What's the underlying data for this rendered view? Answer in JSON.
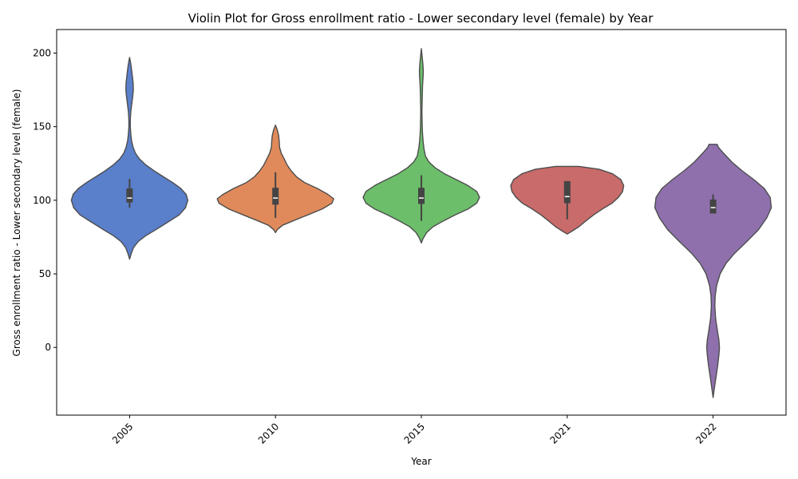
{
  "chart_data": {
    "type": "violin",
    "title": "Violin Plot for Gross enrollment ratio - Lower secondary level (female) by Year",
    "xlabel": "Year",
    "ylabel": "Gross enrollment ratio - Lower secondary level (female)",
    "categories": [
      "2005",
      "2010",
      "2015",
      "2021",
      "2022"
    ],
    "y_ticks": [
      0,
      50,
      100,
      150,
      200
    ],
    "ylim": [
      -46,
      216
    ],
    "grid": false,
    "colors": [
      "#5a7fcb",
      "#e08a5b",
      "#6cbe6a",
      "#c86b6a",
      "#8f70ad"
    ],
    "violins": [
      {
        "category": "2005",
        "profile": [
          [
            60,
            0
          ],
          [
            64,
            0.03
          ],
          [
            68,
            0.07
          ],
          [
            72,
            0.15
          ],
          [
            76,
            0.28
          ],
          [
            80,
            0.45
          ],
          [
            85,
            0.65
          ],
          [
            90,
            0.85
          ],
          [
            95,
            0.96
          ],
          [
            100,
            1.0
          ],
          [
            104,
            0.97
          ],
          [
            108,
            0.88
          ],
          [
            112,
            0.74
          ],
          [
            116,
            0.58
          ],
          [
            120,
            0.42
          ],
          [
            124,
            0.28
          ],
          [
            128,
            0.17
          ],
          [
            132,
            0.1
          ],
          [
            136,
            0.06
          ],
          [
            140,
            0.035
          ],
          [
            145,
            0.02
          ],
          [
            150,
            0.012
          ],
          [
            155,
            0.012
          ],
          [
            160,
            0.02
          ],
          [
            165,
            0.035
          ],
          [
            170,
            0.052
          ],
          [
            175,
            0.065
          ],
          [
            180,
            0.06
          ],
          [
            185,
            0.045
          ],
          [
            190,
            0.03
          ],
          [
            194,
            0.015
          ],
          [
            197,
            0
          ]
        ],
        "box": {
          "q1": 98.5,
          "median": 101.5,
          "q3": 108,
          "whisker_low": 95,
          "whisker_high": 114.5
        }
      },
      {
        "category": "2010",
        "profile": [
          [
            78,
            0
          ],
          [
            80,
            0.03
          ],
          [
            83,
            0.12
          ],
          [
            86,
            0.3
          ],
          [
            90,
            0.55
          ],
          [
            94,
            0.8
          ],
          [
            98,
            0.97
          ],
          [
            101,
            1.0
          ],
          [
            104,
            0.9
          ],
          [
            108,
            0.72
          ],
          [
            112,
            0.5
          ],
          [
            116,
            0.36
          ],
          [
            120,
            0.27
          ],
          [
            124,
            0.2
          ],
          [
            128,
            0.15
          ],
          [
            132,
            0.1
          ],
          [
            136,
            0.07
          ],
          [
            140,
            0.065
          ],
          [
            144,
            0.055
          ],
          [
            148,
            0.03
          ],
          [
            151,
            0
          ]
        ],
        "box": {
          "q1": 97,
          "median": 101.5,
          "q3": 108.5,
          "whisker_low": 88,
          "whisker_high": 119
        }
      },
      {
        "category": "2015",
        "profile": [
          [
            71,
            0
          ],
          [
            74,
            0.03
          ],
          [
            78,
            0.09
          ],
          [
            82,
            0.2
          ],
          [
            86,
            0.38
          ],
          [
            90,
            0.58
          ],
          [
            94,
            0.8
          ],
          [
            98,
            0.95
          ],
          [
            102,
            1.0
          ],
          [
            106,
            0.95
          ],
          [
            110,
            0.8
          ],
          [
            114,
            0.6
          ],
          [
            118,
            0.4
          ],
          [
            122,
            0.24
          ],
          [
            126,
            0.13
          ],
          [
            130,
            0.07
          ],
          [
            135,
            0.045
          ],
          [
            140,
            0.03
          ],
          [
            145,
            0.02
          ],
          [
            150,
            0.015
          ],
          [
            160,
            0.01
          ],
          [
            170,
            0.015
          ],
          [
            178,
            0.02
          ],
          [
            184,
            0.03
          ],
          [
            188,
            0.033
          ],
          [
            192,
            0.028
          ],
          [
            197,
            0.015
          ],
          [
            203,
            0
          ]
        ],
        "box": {
          "q1": 97.5,
          "median": 101.5,
          "q3": 108.5,
          "whisker_low": 86,
          "whisker_high": 117
        }
      },
      {
        "category": "2021",
        "profile": [
          [
            77,
            0
          ],
          [
            79,
            0.08
          ],
          [
            82,
            0.2
          ],
          [
            86,
            0.32
          ],
          [
            90,
            0.45
          ],
          [
            94,
            0.6
          ],
          [
            98,
            0.77
          ],
          [
            102,
            0.88
          ],
          [
            106,
            0.95
          ],
          [
            110,
            0.97
          ],
          [
            114,
            0.92
          ],
          [
            118,
            0.78
          ],
          [
            121,
            0.55
          ],
          [
            123,
            0.2
          ]
        ],
        "box": {
          "q1": 98,
          "median": 102.5,
          "q3": 113,
          "whisker_low": 87,
          "whisker_high": 113
        }
      },
      {
        "category": "2022",
        "profile": [
          [
            -34,
            0
          ],
          [
            -28,
            0.02
          ],
          [
            -20,
            0.05
          ],
          [
            -12,
            0.08
          ],
          [
            -5,
            0.1
          ],
          [
            0,
            0.11
          ],
          [
            5,
            0.1
          ],
          [
            10,
            0.08
          ],
          [
            15,
            0.06
          ],
          [
            20,
            0.042
          ],
          [
            28,
            0.03
          ],
          [
            35,
            0.035
          ],
          [
            42,
            0.06
          ],
          [
            50,
            0.12
          ],
          [
            57,
            0.22
          ],
          [
            64,
            0.37
          ],
          [
            72,
            0.58
          ],
          [
            80,
            0.78
          ],
          [
            88,
            0.92
          ],
          [
            95,
            1.0
          ],
          [
            102,
            0.98
          ],
          [
            108,
            0.88
          ],
          [
            114,
            0.7
          ],
          [
            120,
            0.5
          ],
          [
            126,
            0.32
          ],
          [
            132,
            0.18
          ],
          [
            136,
            0.09
          ],
          [
            138,
            0.07
          ]
        ],
        "box": {
          "q1": 91,
          "median": 95,
          "q3": 100.5,
          "whisker_low": 91,
          "whisker_high": 104
        }
      }
    ]
  }
}
